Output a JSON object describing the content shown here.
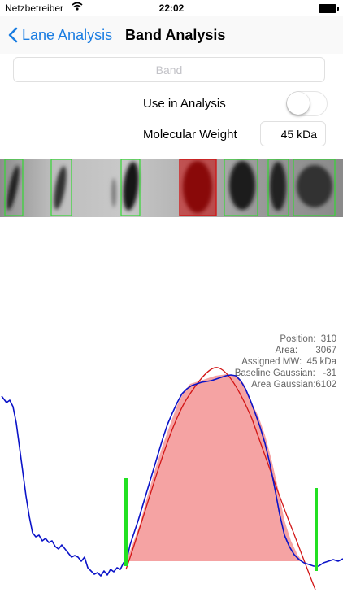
{
  "status_bar": {
    "carrier": "Netzbetreiber",
    "time": "22:02"
  },
  "nav": {
    "back_label": "Lane Analysis",
    "title": "Band Analysis"
  },
  "form": {
    "band_placeholder": "Band",
    "use_in_analysis_label": "Use in Analysis",
    "use_in_analysis_on": false,
    "molecular_weight_label": "Molecular Weight",
    "molecular_weight_value": "45 kDa"
  },
  "info": {
    "position": "Position:  310",
    "area": "Area:       3067",
    "assigned_mw": "Assigned MW:  45 kDa",
    "baseline_gaussian": "Baseline Gaussian:   -31",
    "area_gaussian": "Area Gaussian:6102"
  },
  "colors": {
    "accent": "#1a7de2",
    "profile_line": "#0b13c8",
    "gaussian_curve": "#d21515",
    "area_fill": "#f5a3a3",
    "boundary_marker": "#22e022",
    "selected_band_box": "#d01818",
    "band_box": "#34d834"
  }
}
